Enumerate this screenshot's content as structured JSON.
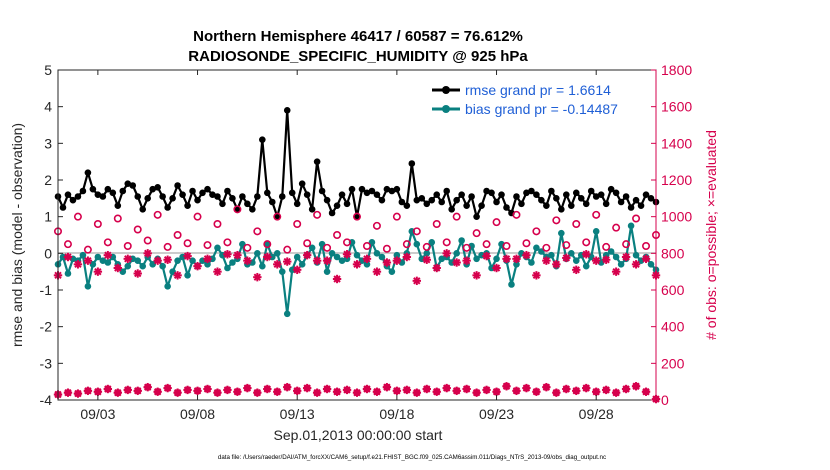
{
  "chart_data": {
    "type": "line",
    "title_line1": "Northern Hemisphere 46417 / 60587 = 76.612%",
    "title_line2": "RADIOSONDE_SPECIFIC_HUMIDITY @ 925 hPa",
    "ylabel_left": "rmse and bias (model - observation)",
    "ylabel_right": "# of obs: o=possible; ×=evaluated",
    "xlabel": "Sep.01,2013 00:00:00 start",
    "footer": "data file: /Users/raeder/DAI/ATM_forcXX/CAM6_setup/f.e21.FHIST_BGC.f09_025.CAM6assim.011/Diags_NTrS_2013-09/obs_diag_output.nc",
    "legend": [
      "rmse grand pr = 1.6614",
      "bias grand pr = -0.14487"
    ],
    "xlim": [
      1.0,
      31.0
    ],
    "x_ticks": [
      3,
      8,
      13,
      18,
      23,
      28
    ],
    "x_tick_labels": [
      "09/03",
      "09/08",
      "09/13",
      "09/18",
      "09/23",
      "09/28"
    ],
    "ylim_left": [
      -4,
      5
    ],
    "y_ticks_left": [
      -4,
      -3,
      -2,
      -1,
      0,
      1,
      2,
      3,
      4,
      5
    ],
    "ylim_right": [
      0,
      1800
    ],
    "y_ticks_right": [
      0,
      200,
      400,
      600,
      800,
      1000,
      1200,
      1400,
      1600,
      1800
    ],
    "x": [
      1.0,
      1.25,
      1.5,
      1.75,
      2.0,
      2.25,
      2.5,
      2.75,
      3.0,
      3.25,
      3.5,
      3.75,
      4.0,
      4.25,
      4.5,
      4.75,
      5.0,
      5.25,
      5.5,
      5.75,
      6.0,
      6.25,
      6.5,
      6.75,
      7.0,
      7.25,
      7.5,
      7.75,
      8.0,
      8.25,
      8.5,
      8.75,
      9.0,
      9.25,
      9.5,
      9.75,
      10.0,
      10.25,
      10.5,
      10.75,
      11.0,
      11.25,
      11.5,
      11.75,
      12.0,
      12.25,
      12.5,
      12.75,
      13.0,
      13.25,
      13.5,
      13.75,
      14.0,
      14.25,
      14.5,
      14.75,
      15.0,
      15.25,
      15.5,
      15.75,
      16.0,
      16.25,
      16.5,
      16.75,
      17.0,
      17.25,
      17.5,
      17.75,
      18.0,
      18.25,
      18.5,
      18.75,
      19.0,
      19.25,
      19.5,
      19.75,
      20.0,
      20.25,
      20.5,
      20.75,
      21.0,
      21.25,
      21.5,
      21.75,
      22.0,
      22.25,
      22.5,
      22.75,
      23.0,
      23.25,
      23.5,
      23.75,
      24.0,
      24.25,
      24.5,
      24.75,
      25.0,
      25.25,
      25.5,
      25.75,
      26.0,
      26.25,
      26.5,
      26.75,
      27.0,
      27.25,
      27.5,
      27.75,
      28.0,
      28.25,
      28.5,
      28.75,
      29.0,
      29.25,
      29.5,
      29.75,
      30.0,
      30.25,
      30.5,
      30.75,
      31.0
    ],
    "series": [
      {
        "name": "rmse",
        "axis": "left",
        "color": "#000000",
        "marker": "filled-circle",
        "values": [
          1.55,
          1.25,
          1.6,
          1.45,
          1.55,
          1.7,
          2.2,
          1.75,
          1.6,
          1.55,
          1.75,
          1.65,
          1.3,
          1.7,
          1.9,
          1.85,
          1.55,
          1.2,
          1.5,
          1.75,
          1.8,
          1.55,
          1.25,
          1.5,
          1.85,
          1.6,
          1.3,
          1.7,
          1.45,
          1.65,
          1.75,
          1.6,
          1.55,
          1.35,
          1.7,
          1.5,
          1.2,
          1.55,
          1.35,
          1.2,
          1.55,
          3.1,
          1.65,
          1.4,
          1.0,
          1.55,
          3.9,
          1.65,
          1.35,
          1.9,
          1.6,
          1.2,
          2.5,
          1.7,
          1.45,
          1.1,
          1.3,
          1.6,
          1.35,
          1.75,
          1.0,
          1.75,
          1.65,
          1.7,
          1.6,
          1.45,
          1.75,
          1.7,
          1.75,
          1.4,
          1.3,
          2.45,
          1.45,
          1.5,
          1.35,
          1.45,
          1.6,
          1.4,
          1.7,
          1.2,
          1.45,
          1.6,
          1.3,
          1.55,
          1.0,
          1.3,
          1.7,
          1.65,
          1.4,
          1.6,
          1.25,
          1.1,
          1.55,
          1.35,
          1.65,
          1.7,
          1.6,
          1.45,
          1.3,
          1.7,
          1.5,
          1.2,
          1.6,
          1.3,
          1.65,
          1.5,
          1.35,
          1.7,
          1.55,
          1.6,
          1.35,
          1.75,
          1.65,
          1.4,
          1.55,
          1.25,
          1.45,
          1.3,
          1.6,
          1.5,
          1.4
        ]
      },
      {
        "name": "bias",
        "axis": "left",
        "color": "#0a8080",
        "marker": "filled-circle",
        "values": [
          -0.3,
          -0.1,
          -0.55,
          -0.15,
          -0.2,
          -0.05,
          -0.9,
          -0.3,
          -0.1,
          -0.2,
          -0.25,
          -0.1,
          -0.3,
          -0.5,
          -0.35,
          -0.15,
          -0.2,
          -0.35,
          -0.1,
          -0.3,
          -0.15,
          -0.35,
          -0.9,
          -0.5,
          -0.2,
          -0.1,
          -0.6,
          -0.2,
          -0.35,
          -0.2,
          -0.3,
          -0.15,
          0.15,
          -0.05,
          -0.4,
          -0.25,
          -0.15,
          0.25,
          -0.3,
          -0.25,
          0.0,
          -0.35,
          0.25,
          -0.1,
          0.0,
          -0.5,
          -1.65,
          -0.45,
          -0.1,
          -0.3,
          -0.05,
          0.15,
          -0.25,
          0.25,
          -0.5,
          0.0,
          -0.1,
          -0.2,
          -0.15,
          0.3,
          -0.05,
          -0.2,
          -0.3,
          0.3,
          0.0,
          -0.1,
          -0.35,
          -0.5,
          -0.05,
          -0.25,
          0.0,
          0.6,
          0.25,
          -0.15,
          0.0,
          0.3,
          -0.4,
          -0.15,
          -0.1,
          -0.25,
          0.0,
          0.35,
          -0.3,
          0.2,
          -0.15,
          -0.05,
          0.0,
          -0.4,
          -0.15,
          0.25,
          -0.2,
          -0.85,
          -0.3,
          0.0,
          -0.1,
          -0.25,
          0.15,
          0.05,
          -0.1,
          -0.05,
          -0.35,
          0.55,
          -0.15,
          0.0,
          -0.2,
          -0.05,
          -0.35,
          -0.1,
          0.6,
          -0.25,
          -0.05,
          0.05,
          -0.1,
          -0.3,
          -0.15,
          0.75,
          -0.05,
          -0.2,
          -0.1,
          -0.3,
          -0.45
        ]
      },
      {
        "name": "obs possible",
        "axis": "right",
        "color": "#d6004c",
        "marker": "open-circle",
        "x": [
          1,
          2,
          3,
          4,
          5,
          6,
          7,
          8,
          9,
          10,
          11,
          12,
          13,
          14,
          15,
          16,
          17,
          18,
          19,
          20,
          21,
          22,
          23,
          24,
          25,
          26,
          27,
          28,
          29,
          30,
          31
        ],
        "values": [
          920,
          1000,
          960,
          990,
          930,
          1010,
          900,
          1000,
          960,
          1040,
          920,
          1000,
          960,
          1010,
          900,
          1000,
          950,
          1000,
          920,
          960,
          1000,
          910,
          970,
          1010,
          920,
          980,
          960,
          1010,
          940,
          990,
          900
        ]
      },
      {
        "name": "obs possible (12Z)",
        "axis": "right",
        "color": "#d6004c",
        "marker": "open-circle",
        "x": [
          1.5,
          2.5,
          3.5,
          4.5,
          5.5,
          6.5,
          7.5,
          8.5,
          9.5,
          10.5,
          11.5,
          12.5,
          13.5,
          14.5,
          15.5,
          16.5,
          17.5,
          18.5,
          19.5,
          20.5,
          21.5,
          22.5,
          23.5,
          24.5,
          25.5,
          26.5,
          27.5,
          28.5,
          29.5,
          30.5
        ],
        "values": [
          850,
          820,
          860,
          840,
          870,
          835,
          855,
          845,
          860,
          830,
          850,
          820,
          855,
          830,
          860,
          840,
          825,
          850,
          835,
          860,
          830,
          850,
          840,
          855,
          830,
          845,
          860,
          835,
          850,
          840
        ]
      },
      {
        "name": "obs evaluated",
        "axis": "right",
        "color": "#d6004c",
        "marker": "asterisk",
        "x": [
          1,
          2,
          3,
          4,
          5,
          6,
          7,
          8,
          9,
          10,
          11,
          12,
          13,
          14,
          15,
          16,
          17,
          18,
          19,
          20,
          21,
          22,
          23,
          24,
          25,
          26,
          27,
          28,
          29,
          30,
          31
        ],
        "values": [
          680,
          740,
          700,
          720,
          690,
          760,
          680,
          730,
          700,
          790,
          670,
          740,
          710,
          760,
          660,
          740,
          700,
          760,
          650,
          720,
          750,
          680,
          720,
          770,
          680,
          740,
          710,
          760,
          700,
          740,
          680
        ]
      },
      {
        "name": "obs evaluated (12Z)",
        "axis": "right",
        "color": "#d6004c",
        "marker": "asterisk",
        "x": [
          1.5,
          2.5,
          3.5,
          4.5,
          5.5,
          6.5,
          7.5,
          8.5,
          9.5,
          10.5,
          11.5,
          12.5,
          13.5,
          14.5,
          15.5,
          16.5,
          17.5,
          18.5,
          19.5,
          20.5,
          21.5,
          22.5,
          23.5,
          24.5,
          25.5,
          26.5,
          27.5,
          28.5,
          29.5,
          30.5
        ],
        "values": [
          780,
          760,
          790,
          770,
          800,
          765,
          785,
          770,
          795,
          760,
          780,
          755,
          790,
          760,
          795,
          770,
          750,
          780,
          765,
          800,
          760,
          785,
          770,
          790,
          760,
          775,
          795,
          765,
          780,
          770
        ]
      },
      {
        "name": "low counts",
        "axis": "right",
        "color": "#d6004c",
        "marker": "asterisk-circle",
        "x": [
          1.0,
          1.5,
          2.0,
          2.5,
          3.0,
          3.5,
          4.0,
          4.5,
          5.0,
          5.5,
          6.0,
          6.5,
          7.0,
          7.5,
          8.0,
          8.5,
          9.0,
          9.5,
          10.0,
          10.5,
          11.0,
          11.5,
          12.0,
          12.5,
          13.0,
          13.5,
          14.0,
          14.5,
          15.0,
          15.5,
          16.0,
          16.5,
          17.0,
          17.5,
          18.0,
          18.5,
          19.0,
          19.5,
          20.0,
          20.5,
          21.0,
          21.5,
          22.0,
          22.5,
          23.0,
          23.5,
          24.0,
          24.5,
          25.0,
          25.5,
          26.0,
          26.5,
          27.0,
          27.5,
          28.0,
          28.5,
          29.0,
          29.5,
          30.0,
          30.5,
          31.0
        ],
        "values": [
          30,
          40,
          35,
          50,
          45,
          60,
          40,
          55,
          50,
          70,
          45,
          65,
          40,
          55,
          50,
          60,
          40,
          55,
          45,
          65,
          40,
          60,
          45,
          70,
          50,
          65,
          40,
          60,
          45,
          55,
          40,
          60,
          45,
          70,
          50,
          55,
          40,
          60,
          45,
          65,
          50,
          60,
          40,
          55,
          45,
          75,
          50,
          65,
          45,
          70,
          40,
          60,
          50,
          65,
          45,
          55,
          40,
          60,
          75,
          45,
          5
        ]
      }
    ]
  }
}
